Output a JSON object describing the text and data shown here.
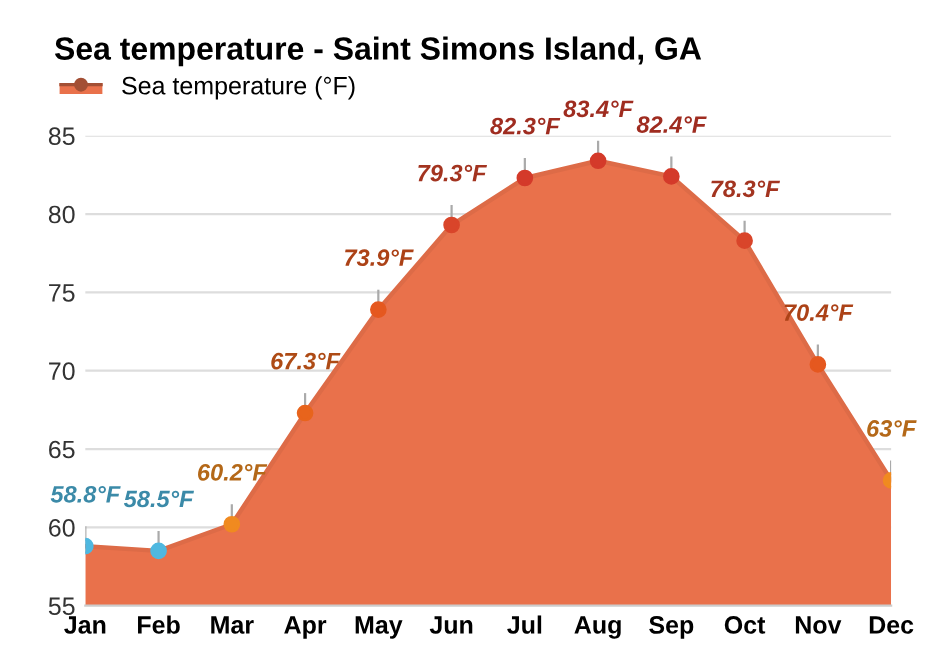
{
  "chart_data": {
    "type": "area",
    "title": "Sea temperature - Saint Simons Island, GA",
    "categories": [
      "Jan",
      "Feb",
      "Mar",
      "Apr",
      "May",
      "Jun",
      "Jul",
      "Aug",
      "Sep",
      "Oct",
      "Nov",
      "Dec"
    ],
    "series": [
      {
        "name": "Sea temperature (°F)",
        "color": "#e9714b",
        "colors": [
          "#4fb8e0",
          "#4fb8e0",
          "#f08a20",
          "#e8641c",
          "#e5581f",
          "#d9452a",
          "#d43a2a",
          "#d43a2a",
          "#d43a2a",
          "#d9452a",
          "#e5581f",
          "#f08a20"
        ],
        "values": [
          58.8,
          58.5,
          60.2,
          67.3,
          73.9,
          79.3,
          82.3,
          83.4,
          82.4,
          78.3,
          70.4,
          63
        ],
        "value_labels": [
          "58.8°F",
          "58.5°F",
          "60.2°F",
          "67.3°F",
          "73.9°F",
          "79.3°F",
          "82.3°F",
          "83.4°F",
          "82.4°F",
          "78.3°F",
          "70.4°F",
          "63°F"
        ]
      }
    ],
    "ylim": [
      55,
      85
    ],
    "yticks": [
      55,
      60,
      65,
      70,
      75,
      80,
      85
    ],
    "grid": "y",
    "legend": "top left",
    "marker": "circle",
    "line_style": "solid"
  }
}
